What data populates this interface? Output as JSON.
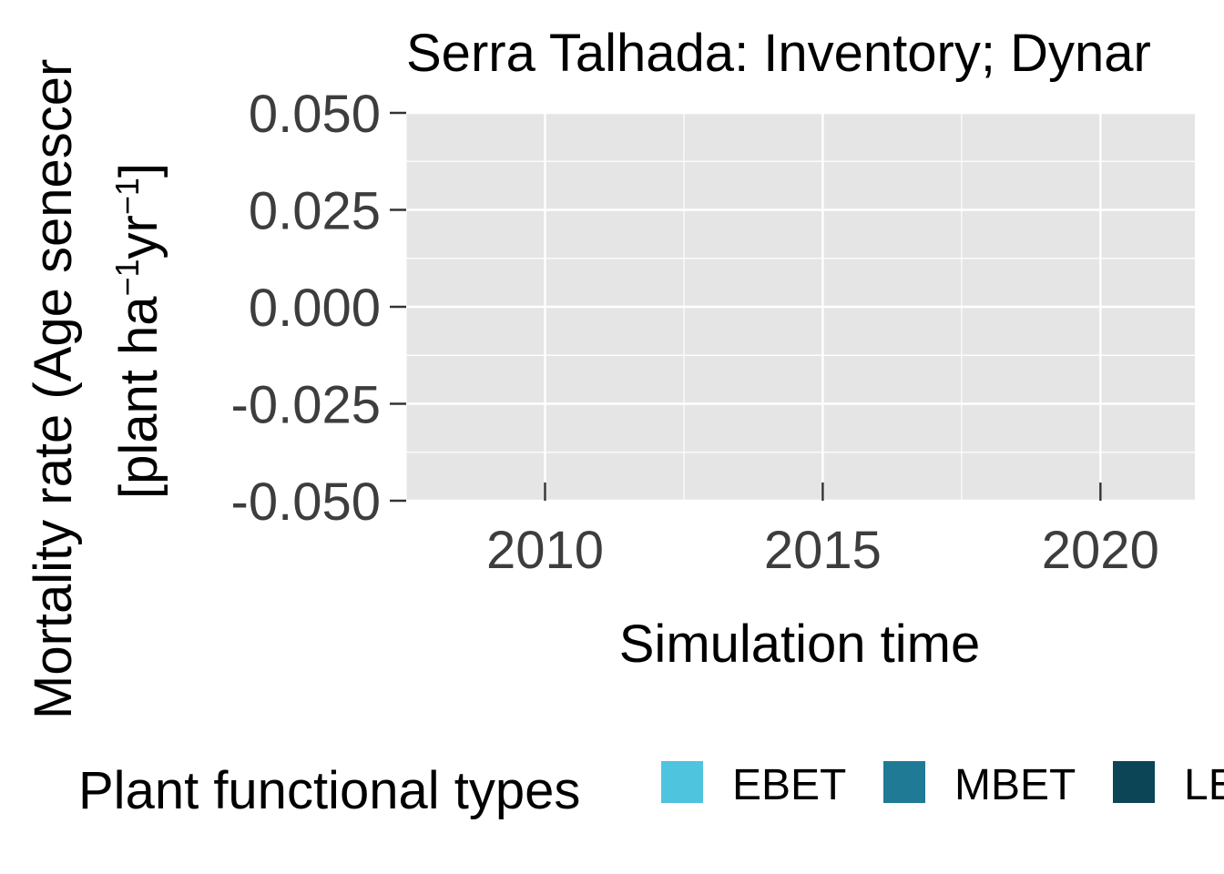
{
  "chart_data": {
    "type": "line",
    "title": "Serra Talhada: Inventory; Dynar",
    "xlabel": "Simulation time",
    "ylabel_line1": "Mortality rate (Age senescer",
    "ylabel_line2": {
      "pre": "[plant ha",
      "sup1": "−1",
      "mid": "yr",
      "sup2": "−1",
      "post": "]"
    },
    "xlim": [
      2007.5,
      2021.7
    ],
    "ylim": [
      -0.05,
      0.05
    ],
    "x_ticks": [
      2010,
      2015,
      2020
    ],
    "x_tick_labels": [
      "2010",
      "2015",
      "2020"
    ],
    "y_ticks": [
      0.05,
      0.025,
      0.0,
      -0.025,
      -0.05
    ],
    "y_tick_labels": [
      "0.050",
      "0.025",
      "0.000",
      "-0.025",
      "-0.050"
    ],
    "grid": true,
    "panel_background": "#e5e5e5",
    "grid_color": "#ffffff",
    "series": [],
    "legend": {
      "title": "Plant functional types",
      "position": "bottom",
      "items": [
        {
          "label": "EBET",
          "color": "#4ec4df"
        },
        {
          "label": "MBET",
          "color": "#1f7a95"
        },
        {
          "label": "LE",
          "color": "#0b4556"
        }
      ]
    }
  }
}
